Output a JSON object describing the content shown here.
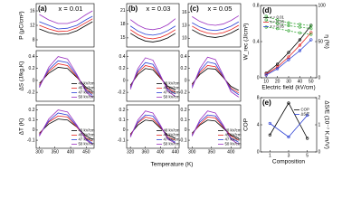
{
  "chart_data": [
    {
      "type": "line",
      "label": "(a)",
      "annotation": "x = 0.01",
      "y_label": "P (μC/cm²)",
      "x": [
        300,
        330,
        360,
        390,
        420,
        450,
        470
      ],
      "xlim": [
        290,
        475
      ],
      "ylim": [
        6,
        18
      ],
      "yticks": [
        8,
        12,
        16
      ],
      "series": [
        {
          "color": "#000000",
          "values": [
            11,
            10,
            9.5,
            9.6,
            10.5,
            12,
            13
          ]
        },
        {
          "color": "#e8231f",
          "values": [
            12,
            11,
            10.3,
            10.4,
            11.3,
            12.8,
            13.8
          ]
        },
        {
          "color": "#2a3fd4",
          "values": [
            13,
            12,
            11,
            11.2,
            12,
            13.6,
            14.5
          ]
        },
        {
          "color": "#9a2fc0",
          "values": [
            15,
            13.5,
            12.5,
            12.5,
            13.3,
            15,
            16
          ]
        }
      ]
    },
    {
      "type": "line",
      "y_label": "ΔS (J/kg.K)",
      "x": [
        300,
        330,
        360,
        390,
        420,
        450,
        470
      ],
      "xlim": [
        290,
        475
      ],
      "ylim": [
        -0.35,
        0.5
      ],
      "yticks": [
        -0.2,
        0,
        0.2,
        0.4
      ],
      "legend": "lower-right",
      "series": [
        {
          "name": "40 kV/cm",
          "color": "#000000",
          "values": [
            -0.05,
            0.12,
            0.22,
            0.2,
            0.05,
            -0.12,
            -0.18
          ]
        },
        {
          "name": "45 kV/cm",
          "color": "#e8231f",
          "values": [
            -0.08,
            0.15,
            0.28,
            0.25,
            0.06,
            -0.15,
            -0.22
          ]
        },
        {
          "name": "47 kV/cm",
          "color": "#2a3fd4",
          "values": [
            -0.1,
            0.18,
            0.33,
            0.3,
            0.08,
            -0.17,
            -0.25
          ]
        },
        {
          "name": "50 kV/cm",
          "color": "#9a2fc0",
          "values": [
            -0.12,
            0.22,
            0.4,
            0.36,
            0.1,
            -0.2,
            -0.28
          ]
        }
      ]
    },
    {
      "type": "line",
      "y_label": "ΔT (K)",
      "x": [
        300,
        330,
        360,
        390,
        420,
        450,
        470
      ],
      "xlim": [
        290,
        475
      ],
      "ylim": [
        -0.18,
        0.25
      ],
      "xticks": [
        300,
        350,
        400,
        450
      ],
      "yticks": [
        -0.1,
        0,
        0.1,
        0.2
      ],
      "legend": "lower-right",
      "series": [
        {
          "name": "40 kV/cm",
          "color": "#000000",
          "values": [
            -0.03,
            0.06,
            0.11,
            0.1,
            0.03,
            -0.06,
            -0.09
          ]
        },
        {
          "name": "45 kV/cm",
          "color": "#e8231f",
          "values": [
            -0.04,
            0.08,
            0.14,
            0.13,
            0.03,
            -0.08,
            -0.11
          ]
        },
        {
          "name": "47 kV/cm",
          "color": "#2a3fd4",
          "values": [
            -0.05,
            0.09,
            0.17,
            0.15,
            0.04,
            -0.09,
            -0.13
          ]
        },
        {
          "name": "50 kV/cm",
          "color": "#9a2fc0",
          "values": [
            -0.06,
            0.11,
            0.2,
            0.18,
            0.05,
            -0.1,
            -0.14
          ]
        }
      ]
    },
    {
      "type": "line",
      "label": "(b)",
      "annotation": "x = 0.03",
      "x": [
        320,
        340,
        360,
        380,
        400,
        420,
        440
      ],
      "xlim": [
        310,
        450
      ],
      "ylim": [
        13,
        22.5
      ],
      "yticks": [
        15,
        18,
        21
      ],
      "series": [
        {
          "color": "#000000",
          "values": [
            16,
            15,
            14.3,
            14.1,
            14.4,
            15,
            16
          ]
        },
        {
          "color": "#e8231f",
          "values": [
            16.8,
            15.7,
            15,
            14.8,
            15.1,
            15.8,
            16.8
          ]
        },
        {
          "color": "#2a3fd4",
          "values": [
            17.6,
            16.5,
            15.8,
            15.6,
            15.9,
            16.6,
            17.6
          ]
        },
        {
          "color": "#9a2fc0",
          "values": [
            19,
            17.8,
            17,
            16.8,
            17.1,
            17.9,
            19.2
          ]
        }
      ]
    },
    {
      "type": "line",
      "x": [
        320,
        340,
        360,
        380,
        400,
        420,
        440
      ],
      "xlim": [
        310,
        450
      ],
      "ylim": [
        -0.35,
        0.5
      ],
      "yticks": [
        -0.2,
        0,
        0.2,
        0.4
      ],
      "legend": "lower-right",
      "series": [
        {
          "name": "40 kV/cm",
          "color": "#000000",
          "values": [
            -0.08,
            0.1,
            0.2,
            0.18,
            0.04,
            -0.1,
            -0.16
          ]
        },
        {
          "name": "45 kV/cm",
          "color": "#e8231f",
          "values": [
            -0.1,
            0.13,
            0.25,
            0.22,
            0.05,
            -0.13,
            -0.2
          ]
        },
        {
          "name": "47 kV/cm",
          "color": "#2a3fd4",
          "values": [
            -0.12,
            0.16,
            0.3,
            0.27,
            0.07,
            -0.15,
            -0.23
          ]
        },
        {
          "name": "50 kV/cm",
          "color": "#9a2fc0",
          "values": [
            -0.15,
            0.2,
            0.38,
            0.34,
            0.09,
            -0.18,
            -0.27
          ]
        }
      ]
    },
    {
      "type": "line",
      "x_label": "Temperature (K)",
      "x": [
        320,
        340,
        360,
        380,
        400,
        420,
        440
      ],
      "xlim": [
        310,
        450
      ],
      "ylim": [
        -0.18,
        0.25
      ],
      "xticks": [
        320,
        360,
        400,
        440
      ],
      "yticks": [
        -0.1,
        0,
        0.1,
        0.2
      ],
      "legend": "lower-right",
      "series": [
        {
          "name": "40 kV/cm",
          "color": "#000000",
          "values": [
            -0.04,
            0.05,
            0.1,
            0.09,
            0.02,
            -0.05,
            -0.08
          ]
        },
        {
          "name": "45 kV/cm",
          "color": "#e8231f",
          "values": [
            -0.05,
            0.07,
            0.13,
            0.11,
            0.03,
            -0.07,
            -0.1
          ]
        },
        {
          "name": "47 kV/cm",
          "color": "#2a3fd4",
          "values": [
            -0.06,
            0.08,
            0.15,
            0.14,
            0.04,
            -0.08,
            -0.12
          ]
        },
        {
          "name": "50 kV/cm",
          "color": "#9a2fc0",
          "values": [
            -0.07,
            0.1,
            0.19,
            0.17,
            0.05,
            -0.09,
            -0.13
          ]
        }
      ]
    },
    {
      "type": "line",
      "label": "(c)",
      "annotation": "x = 0.05",
      "x": [
        300,
        320,
        340,
        360,
        380,
        400,
        420
      ],
      "xlim": [
        290,
        425
      ],
      "ylim": [
        8,
        18
      ],
      "yticks": [
        10,
        13,
        16
      ],
      "series": [
        {
          "color": "#000000",
          "values": [
            12,
            11,
            10.4,
            10.2,
            10.5,
            11.2,
            12.2
          ]
        },
        {
          "color": "#e8231f",
          "values": [
            12.8,
            11.8,
            11.2,
            11,
            11.3,
            12,
            13
          ]
        },
        {
          "color": "#2a3fd4",
          "values": [
            13.6,
            12.6,
            12,
            11.8,
            12.1,
            12.8,
            13.8
          ]
        },
        {
          "color": "#9a2fc0",
          "values": [
            15,
            13.9,
            13.2,
            13,
            13.3,
            14.1,
            15.2
          ]
        }
      ]
    },
    {
      "type": "line",
      "x": [
        300,
        320,
        340,
        360,
        380,
        400,
        420
      ],
      "xlim": [
        290,
        425
      ],
      "ylim": [
        -0.35,
        0.5
      ],
      "yticks": [
        -0.2,
        0,
        0.2,
        0.4
      ],
      "series": [
        {
          "color": "#000000",
          "values": [
            -0.06,
            0.1,
            0.2,
            0.19,
            0.05,
            -0.1,
            -0.17
          ]
        },
        {
          "color": "#e8231f",
          "values": [
            -0.08,
            0.13,
            0.25,
            0.23,
            0.06,
            -0.13,
            -0.21
          ]
        },
        {
          "color": "#2a3fd4",
          "values": [
            -0.1,
            0.16,
            0.31,
            0.28,
            0.07,
            -0.15,
            -0.24
          ]
        },
        {
          "color": "#9a2fc0",
          "values": [
            -0.13,
            0.2,
            0.39,
            0.35,
            0.09,
            -0.19,
            -0.28
          ]
        }
      ]
    },
    {
      "type": "line",
      "x": [
        300,
        320,
        340,
        360,
        380,
        400,
        420
      ],
      "xlim": [
        290,
        425
      ],
      "ylim": [
        -0.18,
        0.25
      ],
      "xticks": [
        300,
        350,
        400
      ],
      "yticks": [
        -0.1,
        0,
        0.1,
        0.2
      ],
      "legend": "lower-right",
      "series": [
        {
          "name": "40 kV/cm",
          "color": "#000000",
          "values": [
            -0.03,
            0.05,
            0.1,
            0.09,
            0.02,
            -0.05,
            -0.08
          ]
        },
        {
          "name": "45 kV/cm",
          "color": "#e8231f",
          "values": [
            -0.04,
            0.06,
            0.13,
            0.12,
            0.03,
            -0.06,
            -0.1
          ]
        },
        {
          "name": "47 kV/cm",
          "color": "#2a3fd4",
          "values": [
            -0.05,
            0.08,
            0.15,
            0.14,
            0.04,
            -0.08,
            -0.12
          ]
        },
        {
          "name": "50 kV/cm",
          "color": "#9a2fc0",
          "values": [
            -0.06,
            0.1,
            0.19,
            0.17,
            0.05,
            -0.09,
            -0.14
          ]
        }
      ]
    },
    {
      "type": "line",
      "label": "(d)",
      "x_label": "Electric field (kV/cm)",
      "y_label": "W_rec (J/cm³)",
      "y2_label": "η (%)",
      "markers": true,
      "x": [
        10,
        20,
        30,
        40,
        50
      ],
      "xlim": [
        5,
        55
      ],
      "ylim": [
        0,
        0.8
      ],
      "y2lim": [
        0,
        100
      ],
      "xticks": [
        10,
        20,
        30,
        40,
        50
      ],
      "yticks": [
        0,
        0.4,
        0.8
      ],
      "y2ticks": [
        0,
        50,
        100
      ],
      "legend": "upper-left",
      "series": [
        {
          "name": "x = 0.01",
          "color": "#000000",
          "values": [
            0.05,
            0.15,
            0.28,
            0.42,
            0.58
          ]
        },
        {
          "name": "x = 0.03",
          "color": "#e8231f",
          "values": [
            0.04,
            0.12,
            0.23,
            0.36,
            0.5
          ]
        },
        {
          "name": "x = 0.05",
          "color": "#2a3fd4",
          "values": [
            0.03,
            0.1,
            0.2,
            0.3,
            0.42
          ]
        },
        {
          "color": "#3aa83a",
          "dashed": true,
          "axis": "y2",
          "values": [
            80,
            75,
            72,
            70,
            68
          ]
        },
        {
          "color": "#3aa83a",
          "dashed": true,
          "axis": "y2",
          "values": [
            85,
            80,
            76,
            74,
            72
          ]
        },
        {
          "color": "#3aa83a",
          "dashed": true,
          "axis": "y2",
          "values": [
            70,
            68,
            65,
            62,
            60
          ]
        }
      ]
    },
    {
      "type": "line",
      "label": "(e)",
      "x_label": "Composition",
      "y_label": "COP",
      "y2_label": "ΔS/E (10⁻⁷ K.m/V)",
      "markers": true,
      "x": [
        1,
        3,
        5
      ],
      "xlim": [
        0,
        6
      ],
      "ylim": [
        0,
        8
      ],
      "y2lim": [
        0,
        2
      ],
      "xticks": [
        1,
        3,
        5
      ],
      "yticks": [
        0,
        4,
        8
      ],
      "y2ticks": [
        0,
        1,
        2
      ],
      "legend": "upper-right",
      "series": [
        {
          "name": "COP",
          "color": "#000000",
          "values": [
            2.5,
            7.2,
            2
          ]
        },
        {
          "name": "ΔS/E",
          "color": "#2a3fd4",
          "axis": "y2",
          "values": [
            1.05,
            0.55,
            1.35
          ]
        }
      ]
    }
  ]
}
